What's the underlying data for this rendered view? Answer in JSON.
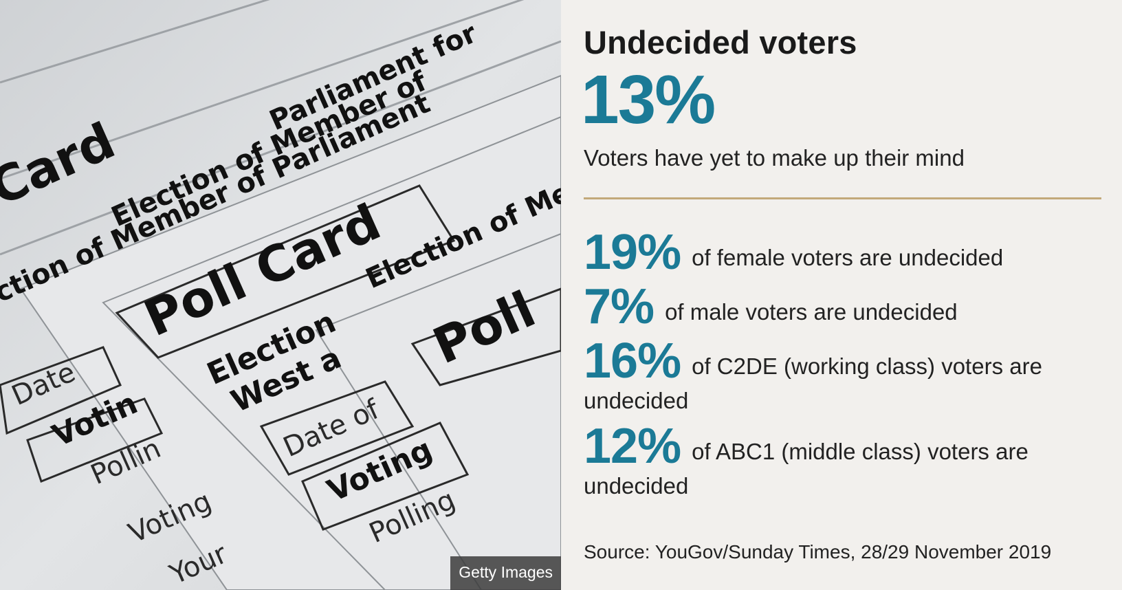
{
  "image": {
    "description": "",
    "credit": "Getty Images",
    "card_text": {
      "poll_card": "Poll Card",
      "card": "Card",
      "election": "Election of Member of Parliament for",
      "election_short": "Election of Member of",
      "election_a": "Election",
      "west": "West a",
      "date": "Date",
      "date_of": "Date of",
      "voting": "Voting",
      "votin": "Votin",
      "polling": "Polling",
      "pollin": "Pollin",
      "your": "Your",
      "poll": "Poll",
      "parliament": "Parliament for",
      "ction": "ction of Member of Parliament",
      "est": "est"
    }
  },
  "panel": {
    "title": "Undecided voters",
    "headline_stat": "13%",
    "headline_text": "Voters have yet to make up their mind",
    "stats": [
      {
        "pct": "19%",
        "text": "of female voters are undecided"
      },
      {
        "pct": "7%",
        "text": "of male voters are undecided"
      },
      {
        "pct": "16%",
        "text": "of C2DE (working class) voters are undecided"
      },
      {
        "pct": "12%",
        "text": "of ABC1 (middle class) voters are undecided"
      }
    ],
    "source": "Source: YouGov/Sunday Times, 28/29 November 2019"
  },
  "colors": {
    "accent": "#1b7a96",
    "divider": "#c2a97a",
    "background": "#f2f0ed"
  }
}
